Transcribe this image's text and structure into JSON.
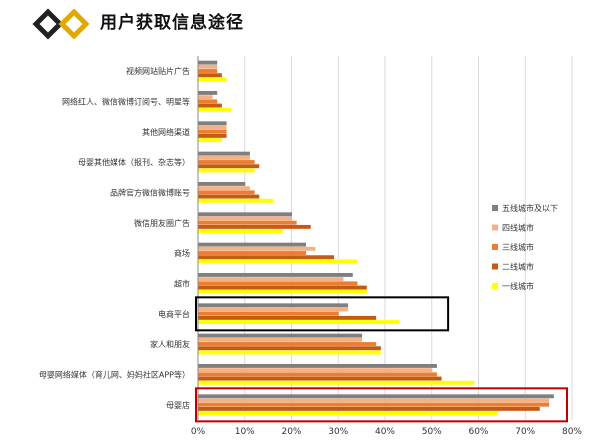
{
  "title": "用户获取信息途径",
  "chart_data": {
    "type": "bar",
    "orientation": "horizontal",
    "categories": [
      "视频网站贴片广告",
      "网络红人、微信微博订阅号、明星等",
      "其他网络渠道",
      "母婴其他媒体（报刊、杂志等）",
      "品牌官方微信微博账号",
      "微信朋友圈广告",
      "商场",
      "超市",
      "电商平台",
      "家人和朋友",
      "母婴网络媒体（育儿网、妈妈社区APP等）",
      "母婴店"
    ],
    "series": [
      {
        "name": "五线城市及以下",
        "color": "#7f7f7f",
        "values": [
          4,
          4,
          6,
          11,
          10,
          20,
          23,
          33,
          32,
          35,
          51,
          76
        ]
      },
      {
        "name": "四线城市",
        "color": "#f4b183",
        "values": [
          4,
          3,
          6,
          11,
          11,
          20,
          25,
          31,
          32,
          35,
          50,
          75
        ]
      },
      {
        "name": "三线城市",
        "color": "#ed7d31",
        "values": [
          4,
          4,
          6,
          12,
          12,
          21,
          23,
          34,
          30,
          38,
          51,
          75
        ]
      },
      {
        "name": "二线城市",
        "color": "#c55a11",
        "values": [
          5,
          5,
          6,
          13,
          13,
          24,
          29,
          36,
          38,
          39,
          52,
          73
        ]
      },
      {
        "name": "一线城市",
        "color": "#ffff00",
        "values": [
          6,
          7,
          5,
          12,
          16,
          18,
          34,
          36,
          43,
          39,
          59,
          64
        ]
      }
    ],
    "xlim": [
      0,
      80
    ],
    "xticks": [
      "0%",
      "10%",
      "20%",
      "30%",
      "40%",
      "50%",
      "60%",
      "70%",
      "80%"
    ],
    "grid": true,
    "legend_position": "right",
    "highlights": [
      {
        "category": "电商平台",
        "color": "#000000"
      },
      {
        "category": "母婴店",
        "color": "#c00000"
      }
    ]
  }
}
